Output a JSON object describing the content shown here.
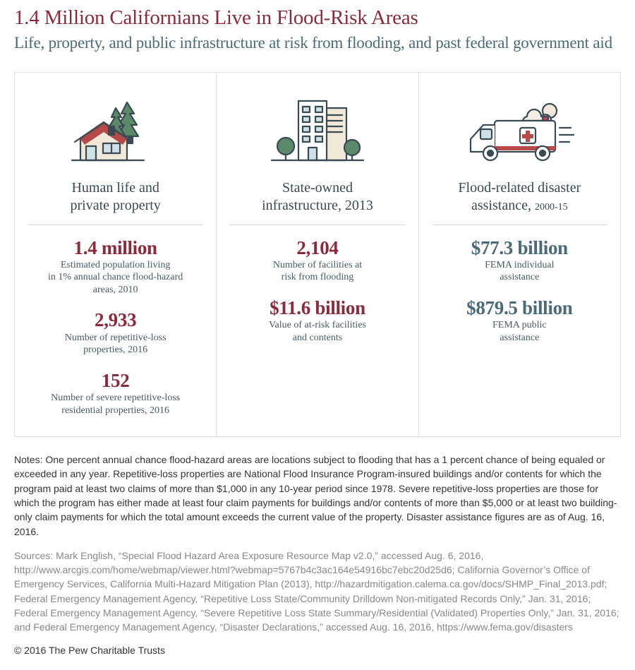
{
  "header": {
    "title": "1.4 Million Californians Live in Flood-Risk Areas",
    "subtitle": "Life, property, and public infrastructure at risk from flooding, and past federal government aid"
  },
  "colors": {
    "accent_red": "#8a2a3a",
    "accent_teal": "#4a6a7a",
    "panel_border": "#d8e2e6",
    "rule": "#d0dadf",
    "body_text": "#333333",
    "muted_text": "#888888",
    "icon_stroke": "#3a4a52",
    "icon_green": "#5a8a6a",
    "icon_cream": "#f0e8d8",
    "icon_red": "#b84a4a",
    "icon_window": "#cfe0e6",
    "icon_cloud": "#f2efe8"
  },
  "panels": [
    {
      "icon": "house-icon",
      "title_html": "Human life and<br>private property",
      "stats": [
        {
          "value": "1.4 million",
          "label": "Estimated population living<br>in 1% annual chance flood-hazard<br>areas, 2010"
        },
        {
          "value": "2,933",
          "label": "Number of repetitive-loss<br>properties, 2016"
        },
        {
          "value": "152",
          "label": "Number of severe repetitive-loss<br>residential properties, 2016"
        }
      ]
    },
    {
      "icon": "building-icon",
      "title_html": "State-owned<br>infrastructure, 2013",
      "stats": [
        {
          "value": "2,104",
          "label": "Number of facilities at<br>risk from flooding"
        },
        {
          "value": "$11.6 billion",
          "label": "Value of at-risk facilities<br>and contents"
        }
      ]
    },
    {
      "icon": "ambulance-icon",
      "title_html": "Flood-related disaster<br>assistance, <span class=\"sub-year\">2000-15</span>",
      "stats": [
        {
          "value": "$77.3 billion",
          "label": "FEMA individual<br>assistance"
        },
        {
          "value": "$879.5 billion",
          "label": "FEMA public<br>assistance"
        }
      ]
    }
  ],
  "notes": "Notes: One percent annual chance flood-hazard areas are locations subject to flooding that has a 1 percent chance of being equaled or exceeded in any year. Repetitive-loss properties are National Flood Insurance Program-insured buildings and/or contents for which the program paid at least two claims of more than $1,000 in any 10-year period since 1978. Severe repetitive-loss properties are those for which the program has either made at least four claim payments for buildings and/or contents of more than $5,000 or at least two building-only claim payments for which the total amount exceeds the current value of the property. Disaster assistance figures are as of Aug. 16, 2016.",
  "sources": "Sources: Mark English, “Special Flood Hazard Area Exposure Resource Map v2.0,” accessed Aug. 6, 2016, http://www.arcgis.com/home/webmap/viewer.html?webmap=5767b4c3ac164e54916bc7ebc20d25d6; California Governor’s Office of Emergency Services, California Multi-Hazard Mitigation Plan (2013), http://hazardmitigation.calema.ca.gov/docs/SHMP_Final_2013.pdf; Federal Emergency Management Agency, “Repetitive Loss State/Community Drilldown Non-mitigated Records Only,” Jan. 31, 2016; Federal Emergency Management Agency, “Severe Repetitive Loss State Summary/Residential (Validated) Properties Only,” Jan. 31, 2016; and Federal Emergency Management Agency, “Disaster Declarations,” accessed Aug. 16, 2016, https://www.fema.gov/disasters",
  "copyright": "© 2016 The Pew Charitable Trusts"
}
